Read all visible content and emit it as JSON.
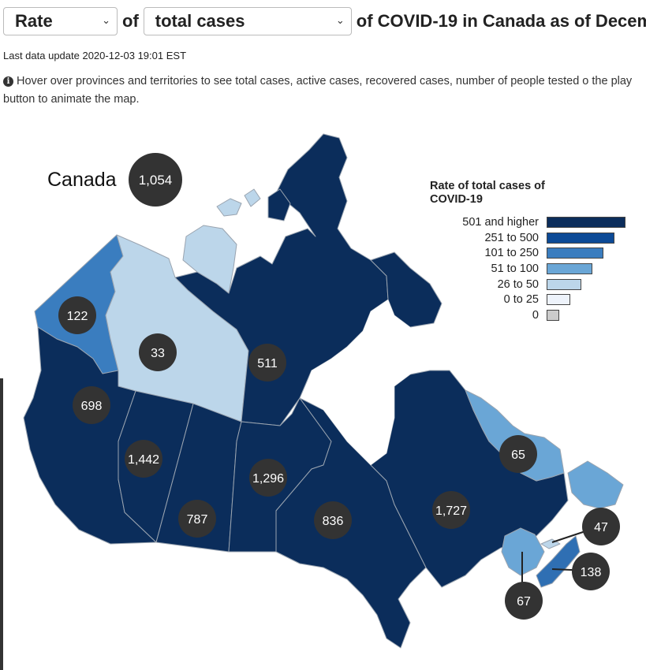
{
  "controls": {
    "metric_select": "Rate",
    "connector": "of",
    "case_select": "total cases",
    "title_suffix": "of COVID-19 in Canada as of Decem"
  },
  "last_update": "Last data update 2020-12-03 19:01 EST",
  "info_text": "Hover over provinces and territories to see total cases, active cases, recovered cases, number of people tested o the play button to animate the map.",
  "canada": {
    "label": "Canada",
    "value": "1,054"
  },
  "regions": [
    {
      "id": "YT",
      "value": "122",
      "fill": "#3a7dbf"
    },
    {
      "id": "NT",
      "value": "33",
      "fill": "#bcd6ea"
    },
    {
      "id": "NU",
      "value": "511",
      "fill": "#0b2d5b"
    },
    {
      "id": "BC",
      "value": "698",
      "fill": "#0b2d5b"
    },
    {
      "id": "AB",
      "value": "1,442",
      "fill": "#0b2d5b"
    },
    {
      "id": "SK",
      "value": "787",
      "fill": "#0b2d5b"
    },
    {
      "id": "MB",
      "value": "1,296",
      "fill": "#0b2d5b"
    },
    {
      "id": "ON",
      "value": "836",
      "fill": "#0b2d5b"
    },
    {
      "id": "QC",
      "value": "1,727",
      "fill": "#0b2d5b"
    },
    {
      "id": "NL",
      "value": "65",
      "fill": "#6aa6d6"
    },
    {
      "id": "NB",
      "value": "67",
      "fill": "#6aa6d6"
    },
    {
      "id": "NS",
      "value": "138",
      "fill": "#2f6fb3"
    },
    {
      "id": "PE",
      "value": "47",
      "fill": "#bcd6ea"
    }
  ],
  "legend": {
    "title": "Rate of total cases of COVID-19",
    "items": [
      {
        "label": "501 and higher",
        "color": "#0b2d5b"
      },
      {
        "label": "251 to 500",
        "color": "#0c4a96"
      },
      {
        "label": "101 to 250",
        "color": "#3a7dbf"
      },
      {
        "label": "51 to 100",
        "color": "#6aa6d6"
      },
      {
        "label": "26 to 50",
        "color": "#bcd6ea"
      },
      {
        "label": "0 to 25",
        "color": "#eef3fb"
      },
      {
        "label": "0",
        "color": "#cccccc"
      }
    ]
  }
}
